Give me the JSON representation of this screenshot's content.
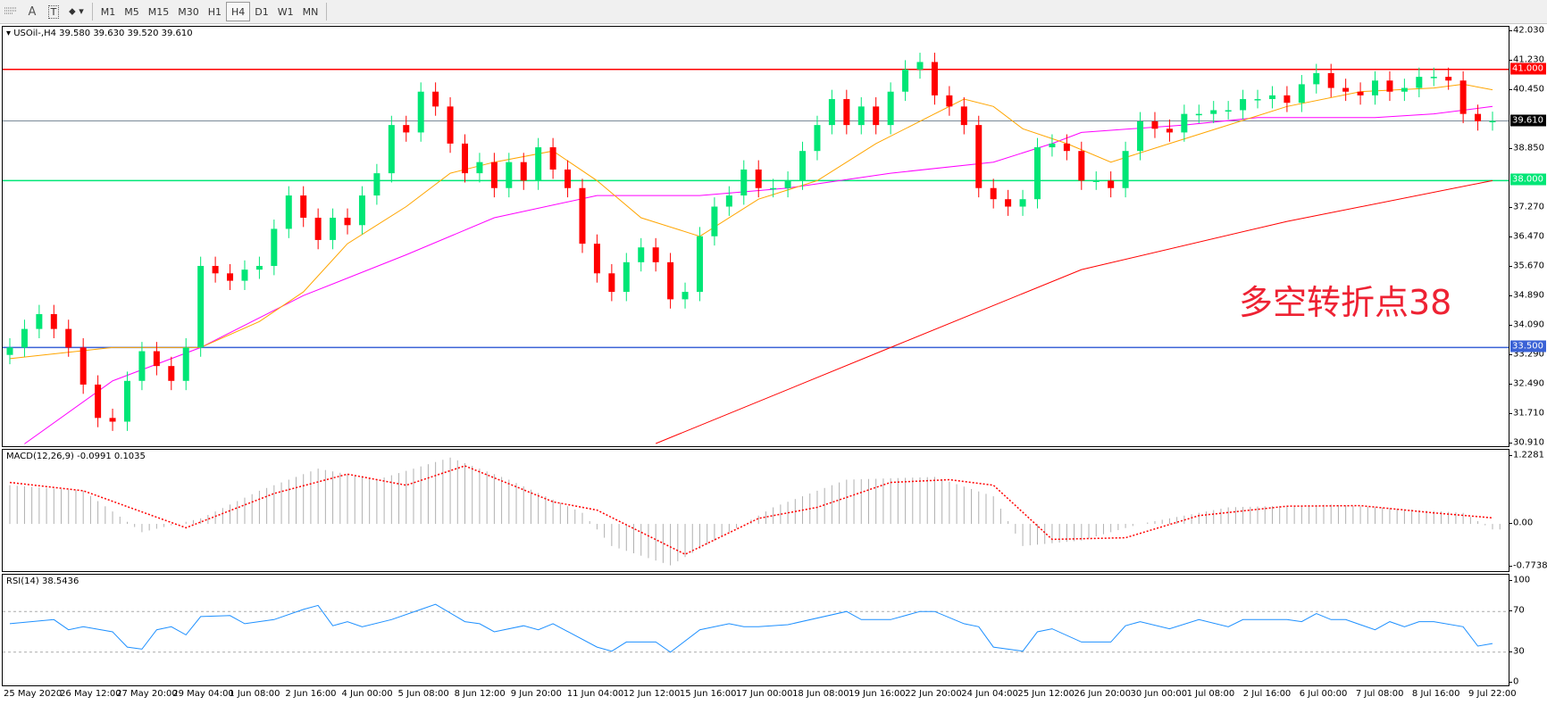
{
  "toolbar": {
    "icons": [
      "grid-f-icon",
      "text-icon",
      "text-label-icon",
      "objects-icon"
    ],
    "text_icon_label": "A",
    "label_icon_label": "T",
    "timeframes": [
      "M1",
      "M5",
      "M15",
      "M30",
      "H1",
      "H4",
      "D1",
      "W1",
      "MN"
    ],
    "active_timeframe": "H4"
  },
  "chart": {
    "title": "USOil-,H4  39.580 39.630 39.520 39.610",
    "annotation": "多空转折点38",
    "colors": {
      "bull": "#00e676",
      "bear": "#ff0000",
      "ma_fast": "#ffa500",
      "ma_mid": "#ff00ff",
      "ma_slow": "#ff0000",
      "hline_41": "#ff0000",
      "hline_current": "#7a8a99",
      "hline_38": "#00e676",
      "hline_33_5": "#3a62d6"
    },
    "price_ticks": [
      "42.030",
      "41.230",
      "40.450",
      "38.850",
      "37.270",
      "36.470",
      "35.670",
      "34.890",
      "34.090",
      "33.290",
      "32.490",
      "31.710",
      "30.910"
    ],
    "hlines": [
      {
        "value": 41.0,
        "label": "41.000",
        "color": "#ff0000",
        "text": "#ffffff"
      },
      {
        "value": 39.61,
        "label": "39.610",
        "color": "#7a8a99",
        "text": "#ffffff",
        "box": "#000000"
      },
      {
        "value": 38.0,
        "label": "38.000",
        "color": "#00e676",
        "text": "#ffffff"
      },
      {
        "value": 33.5,
        "label": "33.500",
        "color": "#3a62d6",
        "text": "#ffffff"
      }
    ]
  },
  "chart_data": [
    {
      "type": "candlestick",
      "symbol": "USOil-",
      "timeframe": "H4",
      "ylim": [
        30.91,
        42.03
      ],
      "closes": [
        33.5,
        34.0,
        34.4,
        34.0,
        33.5,
        32.5,
        31.6,
        31.5,
        32.6,
        33.4,
        33.0,
        32.6,
        33.5,
        35.7,
        35.5,
        35.3,
        35.6,
        35.7,
        36.7,
        37.6,
        37.0,
        36.4,
        37.0,
        36.8,
        37.6,
        38.2,
        39.5,
        39.3,
        40.4,
        40.0,
        39.0,
        38.2,
        38.5,
        37.8,
        38.5,
        38.0,
        38.9,
        38.3,
        37.8,
        36.3,
        35.5,
        35.0,
        35.8,
        36.2,
        35.8,
        34.8,
        35.0,
        36.5,
        37.3,
        37.6,
        38.3,
        37.8,
        37.8,
        38.0,
        38.8,
        39.5,
        40.2,
        39.5,
        40.0,
        39.5,
        40.4,
        41.0,
        41.2,
        40.3,
        40.0,
        39.5,
        37.8,
        37.5,
        37.3,
        37.5,
        38.9,
        39.0,
        38.8,
        38.0,
        38.0,
        37.8,
        38.8,
        39.6,
        39.4,
        39.3,
        39.8,
        39.8,
        39.9,
        39.9,
        40.2,
        40.2,
        40.3,
        40.1,
        40.6,
        40.9,
        40.5,
        40.4,
        40.3,
        40.7,
        40.4,
        40.5,
        40.8,
        40.8,
        40.7,
        39.8,
        39.6,
        39.61
      ],
      "ma_fast": [
        [
          0,
          33.2
        ],
        [
          7,
          33.5
        ],
        [
          13,
          33.5
        ],
        [
          17,
          34.2
        ],
        [
          20,
          35.0
        ],
        [
          23,
          36.3
        ],
        [
          27,
          37.3
        ],
        [
          30,
          38.2
        ],
        [
          33,
          38.5
        ],
        [
          37,
          38.8
        ],
        [
          40,
          38.0
        ],
        [
          43,
          37.0
        ],
        [
          47,
          36.5
        ],
        [
          51,
          37.5
        ],
        [
          55,
          38.0
        ],
        [
          59,
          39.0
        ],
        [
          63,
          39.8
        ],
        [
          65,
          40.2
        ],
        [
          67,
          40.0
        ],
        [
          69,
          39.4
        ],
        [
          72,
          39.0
        ],
        [
          75,
          38.5
        ],
        [
          79,
          39.0
        ],
        [
          83,
          39.5
        ],
        [
          87,
          40.0
        ],
        [
          92,
          40.4
        ],
        [
          97,
          40.5
        ],
        [
          99,
          40.6
        ],
        [
          101,
          40.45
        ]
      ],
      "ma_mid": [
        [
          1,
          30.9
        ],
        [
          7,
          32.6
        ],
        [
          13,
          33.5
        ],
        [
          20,
          34.9
        ],
        [
          27,
          36.0
        ],
        [
          33,
          37.0
        ],
        [
          40,
          37.6
        ],
        [
          47,
          37.6
        ],
        [
          53,
          37.8
        ],
        [
          60,
          38.2
        ],
        [
          67,
          38.5
        ],
        [
          71,
          39.0
        ],
        [
          73,
          39.3
        ],
        [
          80,
          39.5
        ],
        [
          85,
          39.7
        ],
        [
          93,
          39.7
        ],
        [
          97,
          39.8
        ],
        [
          101,
          40.0
        ]
      ],
      "ma_slow": [
        [
          44,
          30.91
        ],
        [
          60,
          33.5
        ],
        [
          73,
          35.6
        ],
        [
          87,
          36.9
        ],
        [
          101,
          38.0
        ]
      ],
      "time_labels": [
        "25 May 2020",
        "26 May 12:00",
        "27 May 20:00",
        "29 May 04:00",
        "1 Jun 08:00",
        "2 Jun 16:00",
        "4 Jun 00:00",
        "5 Jun 08:00",
        "8 Jun 12:00",
        "9 Jun 20:00",
        "11 Jun 04:00",
        "12 Jun 12:00",
        "15 Jun 16:00",
        "17 Jun 00:00",
        "18 Jun 08:00",
        "19 Jun 16:00",
        "22 Jun 20:00",
        "24 Jun 04:00",
        "25 Jun 12:00",
        "26 Jun 20:00",
        "30 Jun 00:00",
        "1 Jul 08:00",
        "2 Jul 16:00",
        "6 Jul 00:00",
        "7 Jul 08:00",
        "8 Jul 16:00",
        "9 Jul 22:00"
      ]
    },
    {
      "type": "bar+line",
      "title": "MACD(12,26,9) -0.0991 0.1035",
      "ylim": [
        -0.7738,
        1.2281
      ],
      "ticks": [
        "1.2281",
        "0.00",
        "-0.7738"
      ],
      "histogram": [
        [
          0,
          0.7
        ],
        [
          5,
          0.6
        ],
        [
          9,
          -0.15
        ],
        [
          13,
          0.1
        ],
        [
          17,
          0.6
        ],
        [
          21,
          1.0
        ],
        [
          25,
          0.8
        ],
        [
          30,
          1.2
        ],
        [
          34,
          0.8
        ],
        [
          39,
          0.2
        ],
        [
          41,
          -0.4
        ],
        [
          45,
          -0.75
        ],
        [
          48,
          -0.3
        ],
        [
          50,
          0.0
        ],
        [
          52,
          0.3
        ],
        [
          57,
          0.8
        ],
        [
          63,
          0.85
        ],
        [
          67,
          0.5
        ],
        [
          69,
          -0.4
        ],
        [
          73,
          -0.3
        ],
        [
          77,
          0.0
        ],
        [
          79,
          0.1
        ],
        [
          83,
          0.3
        ],
        [
          90,
          0.35
        ],
        [
          99,
          0.2
        ],
        [
          101,
          -0.1
        ]
      ],
      "signal": [
        [
          0,
          0.75
        ],
        [
          5,
          0.6
        ],
        [
          12,
          -0.07
        ],
        [
          18,
          0.55
        ],
        [
          23,
          0.9
        ],
        [
          27,
          0.7
        ],
        [
          31,
          1.05
        ],
        [
          37,
          0.4
        ],
        [
          40,
          0.25
        ],
        [
          46,
          -0.55
        ],
        [
          51,
          0.1
        ],
        [
          55,
          0.3
        ],
        [
          60,
          0.75
        ],
        [
          64,
          0.8
        ],
        [
          67,
          0.7
        ],
        [
          71,
          -0.28
        ],
        [
          76,
          -0.25
        ],
        [
          81,
          0.15
        ],
        [
          87,
          0.32
        ],
        [
          92,
          0.33
        ],
        [
          97,
          0.2
        ],
        [
          101,
          0.11
        ]
      ],
      "histogram_color": "#b0b0b0",
      "signal_color": "#ff0000"
    },
    {
      "type": "line",
      "title": "RSI(14) 38.5436",
      "ylim": [
        0,
        100
      ],
      "ticks": [
        "100",
        "70",
        "30",
        "0"
      ],
      "levels": [
        70,
        30
      ],
      "color": "#1e90ff",
      "values": [
        [
          0,
          58
        ],
        [
          3,
          62
        ],
        [
          4,
          52
        ],
        [
          5,
          55
        ],
        [
          7,
          50
        ],
        [
          8,
          35
        ],
        [
          9,
          33
        ],
        [
          10,
          52
        ],
        [
          11,
          55
        ],
        [
          12,
          47
        ],
        [
          13,
          65
        ],
        [
          15,
          66
        ],
        [
          16,
          58
        ],
        [
          18,
          62
        ],
        [
          20,
          72
        ],
        [
          21,
          76
        ],
        [
          22,
          56
        ],
        [
          23,
          60
        ],
        [
          24,
          55
        ],
        [
          26,
          62
        ],
        [
          28,
          72
        ],
        [
          29,
          77
        ],
        [
          31,
          60
        ],
        [
          32,
          58
        ],
        [
          33,
          50
        ],
        [
          35,
          56
        ],
        [
          36,
          52
        ],
        [
          37,
          58
        ],
        [
          40,
          35
        ],
        [
          41,
          31
        ],
        [
          42,
          40
        ],
        [
          44,
          40
        ],
        [
          45,
          30
        ],
        [
          47,
          52
        ],
        [
          49,
          58
        ],
        [
          50,
          55
        ],
        [
          51,
          55
        ],
        [
          53,
          57
        ],
        [
          57,
          70
        ],
        [
          58,
          62
        ],
        [
          60,
          62
        ],
        [
          62,
          70
        ],
        [
          63,
          70
        ],
        [
          65,
          58
        ],
        [
          66,
          55
        ],
        [
          67,
          35
        ],
        [
          69,
          31
        ],
        [
          70,
          50
        ],
        [
          71,
          53
        ],
        [
          73,
          40
        ],
        [
          75,
          40
        ],
        [
          76,
          56
        ],
        [
          77,
          60
        ],
        [
          79,
          53
        ],
        [
          81,
          62
        ],
        [
          83,
          55
        ],
        [
          84,
          62
        ],
        [
          87,
          62
        ],
        [
          88,
          60
        ],
        [
          89,
          68
        ],
        [
          90,
          62
        ],
        [
          91,
          62
        ],
        [
          93,
          52
        ],
        [
          94,
          60
        ],
        [
          95,
          55
        ],
        [
          96,
          60
        ],
        [
          97,
          60
        ],
        [
          99,
          55
        ],
        [
          100,
          36
        ],
        [
          101,
          38.5
        ]
      ]
    }
  ]
}
